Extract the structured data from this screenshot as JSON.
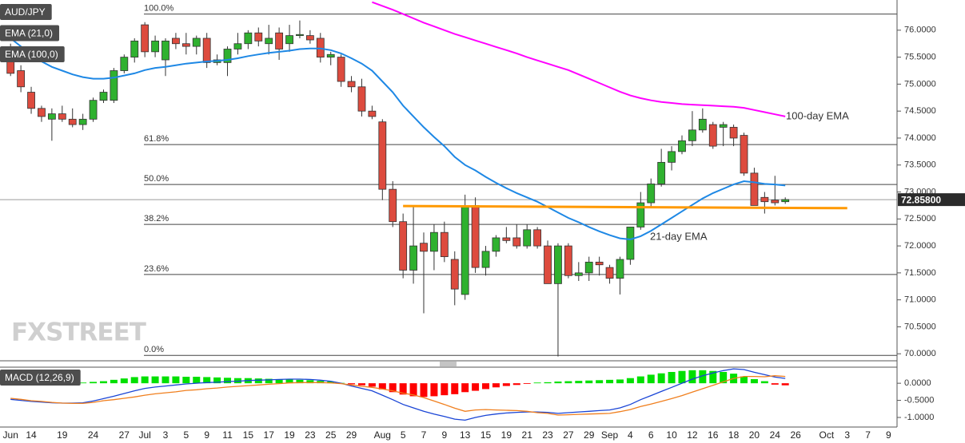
{
  "chart_data": [
    {
      "type": "candlestick",
      "categories": [
        "Jun",
        null,
        "14",
        null,
        null,
        "19",
        null,
        null,
        "24",
        null,
        null,
        "27",
        null,
        "Jul",
        null,
        "3",
        null,
        "5",
        null,
        "9",
        null,
        "11",
        null,
        "15",
        null,
        "17",
        null,
        "19",
        null,
        "23",
        null,
        "25",
        null,
        "29",
        null,
        null,
        "Aug",
        null,
        "5",
        null,
        "7",
        null,
        "9",
        null,
        "13",
        null,
        "15",
        null,
        "19",
        null,
        "21",
        null,
        "23",
        null,
        "27",
        null,
        "29",
        null,
        "Sep",
        null,
        "4",
        null,
        "6",
        null,
        "10",
        null,
        "12",
        null,
        "16",
        null,
        "18",
        null,
        "20",
        null,
        "24",
        null,
        "26",
        null,
        null,
        "Oct",
        null,
        "3",
        null,
        "7",
        null,
        "9"
      ],
      "series": [
        {
          "name": "AUD/JPY",
          "up_color": "#2fb12f",
          "down_color": "#dd4b3e",
          "open": [
            75.6,
            75.25,
            74.85,
            74.55,
            74.35,
            74.45,
            74.35,
            74.25,
            74.35,
            74.7,
            74.7,
            75.25,
            75.5,
            76.1,
            75.6,
            75.45,
            75.85,
            75.75,
            75.7,
            75.85,
            75.4,
            75.4,
            75.65,
            75.75,
            75.95,
            75.75,
            75.95,
            75.75,
            75.9,
            75.9,
            75.85,
            75.5,
            75.5,
            75.05,
            74.95,
            74.5,
            74.3,
            73.05,
            72.45,
            71.55,
            72.05,
            71.9,
            72.25,
            71.75,
            71.1,
            72.75,
            71.6,
            71.9,
            72.15,
            72.15,
            72.0,
            72.3,
            72.0,
            71.3,
            72.0,
            71.45,
            71.5,
            71.7,
            71.6,
            71.4,
            71.75,
            72.35,
            72.8,
            73.15,
            73.55,
            73.75,
            73.95,
            74.15,
            74.25,
            74.2,
            74.2,
            74.05,
            73.35,
            72.9,
            72.85,
            72.82,
            null,
            null,
            null,
            null,
            null,
            null,
            null,
            null,
            null,
            null
          ],
          "high": [
            75.75,
            75.35,
            74.95,
            74.6,
            74.55,
            74.6,
            74.55,
            74.45,
            74.75,
            74.9,
            75.3,
            75.55,
            75.85,
            76.15,
            75.9,
            75.85,
            75.95,
            75.95,
            75.9,
            75.95,
            75.55,
            75.7,
            75.95,
            76.0,
            76.05,
            76.1,
            76.05,
            76.1,
            76.18,
            76.0,
            75.95,
            75.6,
            75.55,
            75.15,
            75.1,
            74.6,
            74.35,
            73.2,
            72.6,
            72.75,
            72.25,
            72.4,
            72.45,
            71.9,
            72.95,
            72.9,
            72.0,
            72.2,
            72.35,
            72.4,
            72.4,
            72.35,
            72.1,
            72.05,
            72.05,
            71.7,
            71.8,
            71.8,
            71.65,
            71.8,
            72.35,
            73.0,
            73.25,
            73.8,
            73.85,
            74.05,
            74.5,
            74.55,
            74.3,
            74.3,
            74.25,
            74.1,
            73.45,
            73.0,
            73.3,
            72.9,
            null,
            null,
            null,
            null,
            null,
            null,
            null,
            null,
            null,
            null
          ],
          "low": [
            75.15,
            74.85,
            74.45,
            74.3,
            73.95,
            74.3,
            74.2,
            74.15,
            74.3,
            74.65,
            74.65,
            75.2,
            75.4,
            75.5,
            75.5,
            75.15,
            75.65,
            75.55,
            75.55,
            75.3,
            75.35,
            75.15,
            75.55,
            75.65,
            75.7,
            75.55,
            75.45,
            75.6,
            75.85,
            75.75,
            75.4,
            75.35,
            74.95,
            74.85,
            74.4,
            74.35,
            72.85,
            72.35,
            71.4,
            71.3,
            70.75,
            71.55,
            71.7,
            70.9,
            71.0,
            71.5,
            71.45,
            71.8,
            72.05,
            71.95,
            71.95,
            71.95,
            71.3,
            69.95,
            71.4,
            71.35,
            71.35,
            71.45,
            71.3,
            71.1,
            71.65,
            72.3,
            72.7,
            73.1,
            73.4,
            73.7,
            73.85,
            74.1,
            73.8,
            73.85,
            73.85,
            73.3,
            72.75,
            72.6,
            72.75,
            72.78,
            null,
            null,
            null,
            null,
            null,
            null,
            null,
            null,
            null,
            null
          ],
          "close": [
            75.2,
            74.95,
            74.55,
            74.4,
            74.45,
            74.35,
            74.25,
            74.35,
            74.7,
            74.85,
            75.25,
            75.5,
            75.8,
            75.6,
            75.8,
            75.8,
            75.75,
            75.7,
            75.85,
            75.4,
            75.45,
            75.65,
            75.75,
            75.95,
            75.8,
            75.85,
            75.65,
            75.9,
            75.92,
            75.82,
            75.5,
            75.55,
            75.05,
            74.95,
            74.5,
            74.4,
            73.05,
            72.45,
            71.55,
            72.0,
            71.9,
            72.25,
            71.8,
            71.2,
            72.75,
            71.6,
            71.9,
            72.15,
            72.1,
            72.0,
            72.3,
            72.0,
            71.3,
            72.0,
            71.45,
            71.5,
            71.7,
            71.65,
            71.4,
            71.75,
            72.35,
            72.8,
            73.15,
            73.55,
            73.75,
            73.95,
            74.15,
            74.35,
            73.85,
            74.25,
            74.0,
            73.35,
            72.75,
            72.82,
            72.8,
            72.86,
            null,
            null,
            null,
            null,
            null,
            null,
            null,
            null,
            null,
            null
          ]
        },
        {
          "name": "EMA (21,0)",
          "color": "#1e88e5",
          "values": [
            75.85,
            75.7,
            75.55,
            75.42,
            75.32,
            75.25,
            75.18,
            75.13,
            75.1,
            75.1,
            75.12,
            75.16,
            75.2,
            75.26,
            75.3,
            75.32,
            75.35,
            75.38,
            75.4,
            75.42,
            75.43,
            75.45,
            75.48,
            75.52,
            75.55,
            75.58,
            75.6,
            75.62,
            75.65,
            75.66,
            75.66,
            75.63,
            75.57,
            75.48,
            75.38,
            75.25,
            75.05,
            74.85,
            74.6,
            74.4,
            74.2,
            74.02,
            73.85,
            73.65,
            73.5,
            73.4,
            73.28,
            73.17,
            73.07,
            72.98,
            72.9,
            72.82,
            72.72,
            72.62,
            72.52,
            72.44,
            72.35,
            72.27,
            72.2,
            72.14,
            72.12,
            72.18,
            72.28,
            72.4,
            72.52,
            72.64,
            72.76,
            72.88,
            72.98,
            73.06,
            73.14,
            73.2,
            73.18,
            73.15,
            73.14,
            73.12,
            null,
            null,
            null,
            null,
            null,
            null,
            null,
            null,
            null,
            null
          ]
        },
        {
          "name": "EMA (100,0)",
          "color": "#ff00ff",
          "values": [
            null,
            null,
            null,
            null,
            null,
            null,
            null,
            null,
            null,
            null,
            null,
            null,
            null,
            null,
            null,
            null,
            null,
            null,
            null,
            null,
            null,
            null,
            null,
            null,
            null,
            null,
            null,
            null,
            null,
            null,
            null,
            null,
            null,
            null,
            null,
            76.52,
            76.45,
            76.38,
            76.3,
            76.22,
            76.14,
            76.07,
            76.0,
            75.93,
            75.87,
            75.81,
            75.75,
            75.69,
            75.63,
            75.57,
            75.5,
            75.44,
            75.38,
            75.32,
            75.26,
            75.18,
            75.1,
            75.02,
            74.94,
            74.86,
            74.79,
            74.74,
            74.7,
            74.67,
            74.65,
            74.63,
            74.62,
            74.61,
            74.6,
            74.59,
            74.58,
            74.56,
            74.52,
            74.48,
            74.44,
            74.4,
            null,
            null,
            null,
            null,
            null,
            null,
            null,
            null,
            null,
            null
          ]
        }
      ],
      "ylim": [
        69.87,
        76.56
      ],
      "yticks": [
        {
          "value": 70,
          "label": "70.0000"
        },
        {
          "value": 70.5,
          "label": "70.5000"
        },
        {
          "value": 71,
          "label": "71.0000"
        },
        {
          "value": 71.5,
          "label": "71.5000"
        },
        {
          "value": 72,
          "label": "72.0000"
        },
        {
          "value": 72.5,
          "label": "72.5000"
        },
        {
          "value": 73,
          "label": "73.0000"
        },
        {
          "value": 73.5,
          "label": "73.5000"
        },
        {
          "value": 74,
          "label": "74.0000"
        },
        {
          "value": 74.5,
          "label": "74.5000"
        },
        {
          "value": 75,
          "label": "75.0000"
        },
        {
          "value": 75.5,
          "label": "75.5000"
        },
        {
          "value": 76,
          "label": "76.0000"
        }
      ],
      "levels": [
        {
          "label": "100.0%",
          "value": 76.3
        },
        {
          "label": "61.8%",
          "value": 73.88
        },
        {
          "label": "50.0%",
          "value": 73.14
        },
        {
          "label": "38.2%",
          "value": 72.4
        },
        {
          "label": "23.6%",
          "value": 71.47
        },
        {
          "label": "0.0%",
          "value": 69.97
        }
      ],
      "trendline": {
        "color": "#ff9900",
        "values": [
          72.74,
          72.7
        ]
      },
      "last_price": {
        "value": 72.858,
        "label": "72.85800"
      },
      "annotations": [
        {
          "text": "100-day EMA",
          "color": "#ff00ff"
        },
        {
          "text": "21-day EMA",
          "color": "#1e88e5"
        }
      ],
      "watermark": "FXSTREET"
    },
    {
      "type": "macd",
      "title": "MACD (12,26,9)",
      "histogram": {
        "up_color": "#00e000",
        "down_color": "#ff0000",
        "values": [
          -0.03,
          -0.03,
          -0.02,
          -0.02,
          -0.01,
          0.0,
          0.01,
          0.02,
          0.04,
          0.06,
          0.1,
          0.14,
          0.18,
          0.2,
          0.2,
          0.2,
          0.2,
          0.19,
          0.19,
          0.18,
          0.17,
          0.16,
          0.15,
          0.15,
          0.14,
          0.13,
          0.12,
          0.11,
          0.1,
          0.09,
          0.07,
          0.05,
          0.01,
          -0.03,
          -0.06,
          -0.1,
          -0.18,
          -0.26,
          -0.33,
          -0.38,
          -0.4,
          -0.38,
          -0.35,
          -0.32,
          -0.26,
          -0.22,
          -0.17,
          -0.12,
          -0.08,
          -0.05,
          -0.02,
          0.02,
          0.03,
          0.05,
          0.06,
          0.07,
          0.08,
          0.09,
          0.1,
          0.11,
          0.15,
          0.2,
          0.25,
          0.29,
          0.33,
          0.36,
          0.38,
          0.38,
          0.36,
          0.33,
          0.28,
          0.2,
          0.12,
          0.06,
          -0.04,
          -0.06,
          null,
          null,
          null,
          null,
          null,
          null,
          null,
          null,
          null,
          null
        ]
      },
      "series": [
        {
          "color": "#1a45d6",
          "values": [
            -0.47,
            -0.5,
            -0.53,
            -0.55,
            -0.57,
            -0.58,
            -0.58,
            -0.57,
            -0.52,
            -0.45,
            -0.38,
            -0.3,
            -0.22,
            -0.15,
            -0.11,
            -0.08,
            -0.05,
            -0.02,
            0.0,
            0.02,
            0.03,
            0.05,
            0.06,
            0.08,
            0.09,
            0.1,
            0.11,
            0.12,
            0.12,
            0.11,
            0.09,
            0.06,
            0.0,
            -0.08,
            -0.15,
            -0.22,
            -0.35,
            -0.48,
            -0.62,
            -0.72,
            -0.82,
            -0.9,
            -0.97,
            -1.05,
            -1.08,
            -1.0,
            -0.94,
            -0.9,
            -0.87,
            -0.85,
            -0.84,
            -0.84,
            -0.85,
            -0.88,
            -0.86,
            -0.84,
            -0.82,
            -0.8,
            -0.78,
            -0.72,
            -0.62,
            -0.48,
            -0.36,
            -0.24,
            -0.12,
            0.0,
            0.12,
            0.22,
            0.3,
            0.37,
            0.42,
            0.4,
            0.32,
            0.25,
            0.18,
            0.14,
            null,
            null,
            null,
            null,
            null,
            null,
            null,
            null,
            null,
            null
          ]
        },
        {
          "color": "#f07f1e",
          "values": [
            -0.44,
            -0.47,
            -0.51,
            -0.53,
            -0.56,
            -0.58,
            -0.59,
            -0.59,
            -0.56,
            -0.51,
            -0.48,
            -0.44,
            -0.4,
            -0.35,
            -0.31,
            -0.28,
            -0.25,
            -0.21,
            -0.19,
            -0.16,
            -0.14,
            -0.11,
            -0.09,
            -0.07,
            -0.05,
            -0.03,
            -0.01,
            0.01,
            0.02,
            0.02,
            0.02,
            0.01,
            -0.01,
            -0.05,
            -0.09,
            -0.12,
            -0.17,
            -0.22,
            -0.29,
            -0.34,
            -0.42,
            -0.52,
            -0.62,
            -0.73,
            -0.82,
            -0.78,
            -0.77,
            -0.78,
            -0.79,
            -0.8,
            -0.82,
            -0.86,
            -0.88,
            -0.93,
            -0.92,
            -0.91,
            -0.9,
            -0.89,
            -0.88,
            -0.83,
            -0.77,
            -0.68,
            -0.61,
            -0.53,
            -0.45,
            -0.36,
            -0.26,
            -0.16,
            -0.06,
            0.04,
            0.14,
            0.2,
            0.2,
            0.19,
            0.22,
            0.2,
            null,
            null,
            null,
            null,
            null,
            null,
            null,
            null,
            null,
            null
          ]
        }
      ],
      "ylim": [
        -1.28,
        0.47
      ],
      "yticks": [
        {
          "value": 0,
          "label": "0.0000"
        },
        {
          "value": -0.5,
          "label": "-0.5000"
        },
        {
          "value": -1,
          "label": "-1.0000"
        }
      ]
    }
  ]
}
